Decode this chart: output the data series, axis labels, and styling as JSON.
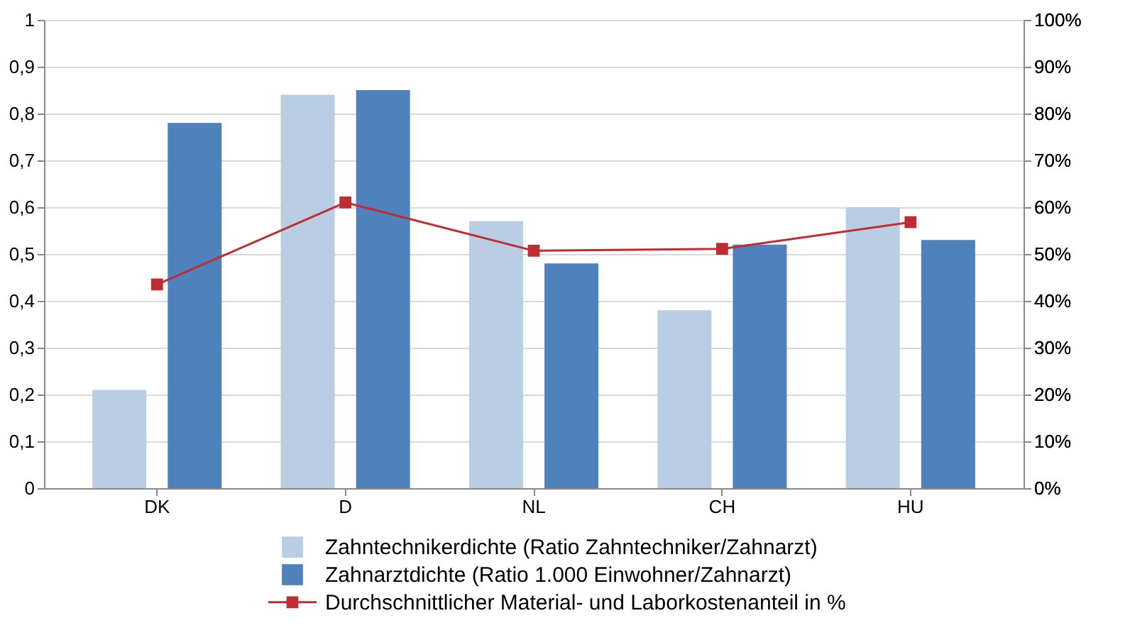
{
  "chart_data": {
    "type": "bar",
    "categories": [
      "DK",
      "D",
      "NL",
      "CH",
      "HU"
    ],
    "series": [
      {
        "name": "Zahntechnikerdichte (Ratio Zahntechniker/Zahnarzt)",
        "color": "#b9cde5",
        "values": [
          0.21,
          0.84,
          0.57,
          0.38,
          0.6
        ]
      },
      {
        "name": "Zahnarztdichte (Ratio 1.000 Einwohner/Zahnarzt)",
        "color": "#4f81bd",
        "values": [
          0.78,
          0.85,
          0.48,
          0.52,
          0.53
        ]
      },
      {
        "name": "Durchschnittlicher Material- und Laborkostenanteil in %",
        "color": "#be2d32",
        "type": "line",
        "axis": "y2",
        "values": [
          43.5,
          61,
          50.7,
          51.1,
          56.8
        ]
      }
    ],
    "ylim": [
      0,
      1
    ],
    "yticks": [
      0,
      {
        "value": 0.1,
        "label": "0,1"
      },
      {
        "value": 0.2,
        "label": "0,2"
      },
      {
        "value": 0.3,
        "label": "0,3"
      },
      {
        "value": 0.4,
        "label": "0,4"
      },
      {
        "value": 0.5,
        "label": "0,5"
      },
      {
        "value": 0.6,
        "label": "0,6"
      },
      {
        "value": 0.7,
        "label": "0,7"
      },
      {
        "value": 0.8,
        "label": "0,8"
      },
      {
        "value": 0.9,
        "label": "0,9"
      },
      1
    ],
    "y2lim": [
      0,
      100
    ],
    "y2ticks": [
      {
        "value": 0,
        "label": "0%"
      },
      {
        "value": 10,
        "label": "10%"
      },
      {
        "value": 20,
        "label": "20%"
      },
      {
        "value": 30,
        "label": "30%"
      },
      {
        "value": 40,
        "label": "40%"
      },
      {
        "value": 50,
        "label": "50%"
      },
      {
        "value": 60,
        "label": "60%"
      },
      {
        "value": 70,
        "label": "70%"
      },
      {
        "value": 80,
        "label": "80%"
      },
      {
        "value": 90,
        "label": "90%"
      },
      {
        "value": 100,
        "label": "100%"
      }
    ],
    "grid": "y",
    "legend": "bottom",
    "marker": "square",
    "line_style": "solid"
  }
}
